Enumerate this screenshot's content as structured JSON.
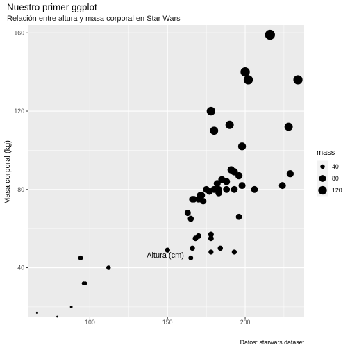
{
  "chart_data": {
    "type": "scatter",
    "title": "Nuestro primer ggplot",
    "subtitle": "Relación entre altura y masa corporal en Star Wars",
    "xlabel": "Altura (cm)",
    "ylabel": "Masa corporal (kg)",
    "caption": "Datos: starwars dataset",
    "xlim": [
      60,
      238
    ],
    "ylim": [
      15,
      164
    ],
    "x_ticks": [
      100,
      150,
      200
    ],
    "x_tick_labels": [
      "100",
      "150",
      "200"
    ],
    "y_ticks": [
      40,
      80,
      120,
      160
    ],
    "y_tick_labels": [
      "40",
      "80",
      "120",
      "160"
    ],
    "grid": true,
    "legend": {
      "title": "mass",
      "position": "right",
      "values": [
        40,
        80,
        120
      ],
      "labels": [
        "40",
        "80",
        "120"
      ]
    },
    "size_range": [
      15,
      160
    ],
    "points": [
      {
        "x": 66,
        "y": 17
      },
      {
        "x": 79,
        "y": 15
      },
      {
        "x": 88,
        "y": 20
      },
      {
        "x": 94,
        "y": 45
      },
      {
        "x": 96,
        "y": 32
      },
      {
        "x": 97,
        "y": 32
      },
      {
        "x": 112,
        "y": 40
      },
      {
        "x": 150,
        "y": 49
      },
      {
        "x": 163,
        "y": 68
      },
      {
        "x": 165,
        "y": 65
      },
      {
        "x": 165,
        "y": 45
      },
      {
        "x": 166,
        "y": 50
      },
      {
        "x": 166,
        "y": 75
      },
      {
        "x": 167,
        "y": 75
      },
      {
        "x": 168,
        "y": 55
      },
      {
        "x": 170,
        "y": 56.2
      },
      {
        "x": 170,
        "y": 75
      },
      {
        "x": 171,
        "y": 77
      },
      {
        "x": 172,
        "y": 77
      },
      {
        "x": 173,
        "y": 74
      },
      {
        "x": 175,
        "y": 80
      },
      {
        "x": 177,
        "y": 79
      },
      {
        "x": 178,
        "y": 57
      },
      {
        "x": 178,
        "y": 55
      },
      {
        "x": 178,
        "y": 48
      },
      {
        "x": 178,
        "y": 120
      },
      {
        "x": 180,
        "y": 110
      },
      {
        "x": 180,
        "y": 80
      },
      {
        "x": 182,
        "y": 83
      },
      {
        "x": 183,
        "y": 78.2
      },
      {
        "x": 183,
        "y": 80
      },
      {
        "x": 184,
        "y": 50
      },
      {
        "x": 185,
        "y": 85
      },
      {
        "x": 188,
        "y": 84
      },
      {
        "x": 188,
        "y": 80
      },
      {
        "x": 190,
        "y": 113
      },
      {
        "x": 191,
        "y": 90
      },
      {
        "x": 193,
        "y": 48
      },
      {
        "x": 193,
        "y": 80
      },
      {
        "x": 193,
        "y": 89
      },
      {
        "x": 196,
        "y": 66
      },
      {
        "x": 196,
        "y": 87
      },
      {
        "x": 198,
        "y": 82
      },
      {
        "x": 198,
        "y": 102
      },
      {
        "x": 200,
        "y": 140
      },
      {
        "x": 202,
        "y": 136
      },
      {
        "x": 206,
        "y": 80
      },
      {
        "x": 216,
        "y": 159
      },
      {
        "x": 224,
        "y": 82
      },
      {
        "x": 228,
        "y": 112
      },
      {
        "x": 229,
        "y": 88
      },
      {
        "x": 234,
        "y": 136
      }
    ]
  }
}
